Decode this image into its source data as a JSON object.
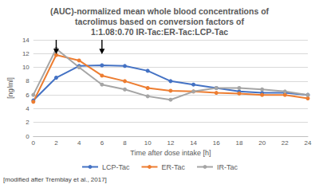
{
  "chart_data": {
    "type": "line",
    "title": "(AUC)-normalized mean whole blood concentrations of\ntacrolimus based on conversion factors of\n1:1.08:0.70 IR-Tac:ER-Tac:LCP-Tac",
    "x_label": "Time after dose intake [h]",
    "y_label": "[ng/ml]",
    "note": "[modified after Tremblay et al., 2017]",
    "x": [
      0,
      2,
      4,
      6,
      8,
      10,
      12,
      14,
      16,
      18,
      20,
      22,
      24
    ],
    "series": [
      {
        "name": "LCP-Tac",
        "color": "#4472c4",
        "values": [
          5.2,
          8.5,
          10.2,
          10.3,
          10.2,
          9.5,
          8.0,
          7.5,
          7.0,
          6.5,
          6.3,
          6.3,
          6.0
        ]
      },
      {
        "name": "ER-Tac",
        "color": "#ed7d31",
        "values": [
          5.0,
          11.8,
          11.0,
          8.8,
          8.0,
          7.0,
          6.6,
          6.5,
          6.3,
          6.2,
          6.0,
          6.0,
          5.5
        ]
      },
      {
        "name": "IR-Tac",
        "color": "#a5a5a5",
        "values": [
          6.0,
          12.7,
          10.0,
          7.5,
          6.8,
          5.8,
          5.3,
          6.5,
          7.0,
          7.0,
          6.8,
          6.5,
          6.0
        ]
      }
    ],
    "arrows_x": [
      2,
      6
    ],
    "xlim": [
      0,
      24
    ],
    "xticks": [
      0,
      2,
      4,
      6,
      8,
      10,
      12,
      14,
      16,
      18,
      20,
      22,
      24
    ],
    "ylim": [
      0,
      14
    ],
    "yticks": [
      0,
      2,
      4,
      6,
      8,
      10,
      12,
      14
    ],
    "grid": true,
    "legend": "bottom",
    "marker": "circle"
  }
}
